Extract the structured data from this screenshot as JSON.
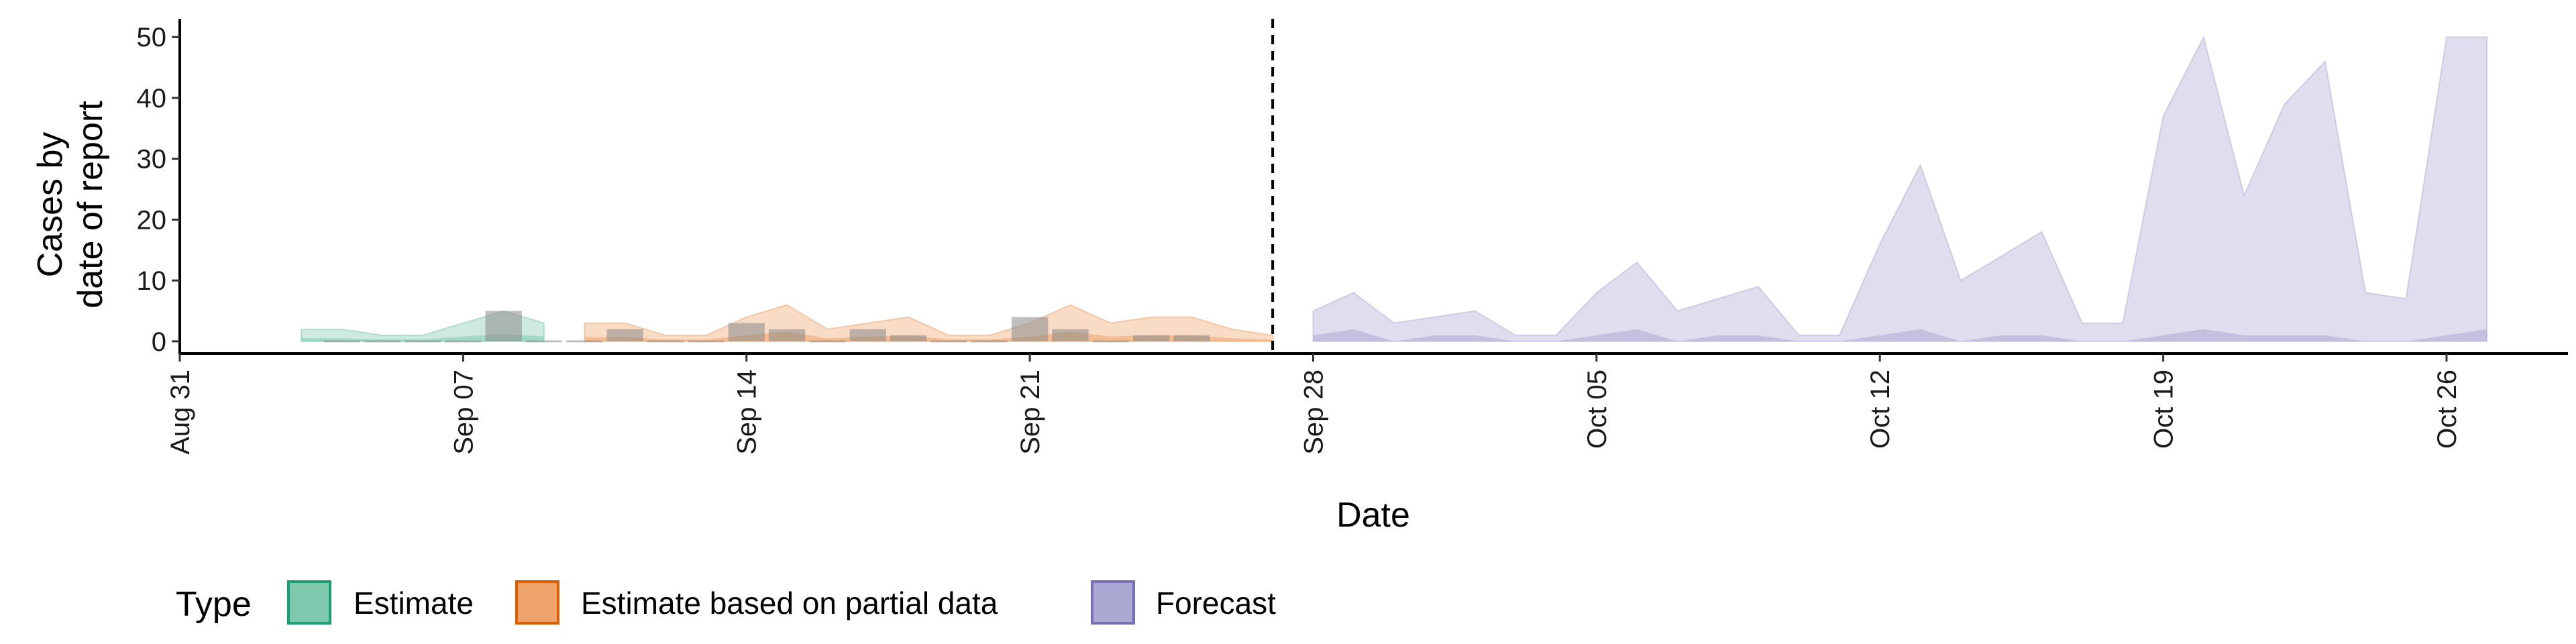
{
  "chart_data": {
    "type": "area",
    "xlabel": "Date",
    "ylabel_lines": [
      "Cases by",
      "date of report"
    ],
    "yticks": [
      0,
      10,
      20,
      30,
      40,
      50
    ],
    "ylim": [
      -2,
      53
    ],
    "xlim": [
      "2020-08-31",
      "2020-10-29"
    ],
    "xticks": [
      {
        "date": "2020-08-31",
        "label": "Aug 31"
      },
      {
        "date": "2020-09-07",
        "label": "Sep 07"
      },
      {
        "date": "2020-09-14",
        "label": "Sep 14"
      },
      {
        "date": "2020-09-21",
        "label": "Sep 21"
      },
      {
        "date": "2020-09-28",
        "label": "Sep 28"
      },
      {
        "date": "2020-10-05",
        "label": "Oct 05"
      },
      {
        "date": "2020-10-12",
        "label": "Oct 12"
      },
      {
        "date": "2020-10-19",
        "label": "Oct 19"
      },
      {
        "date": "2020-10-26",
        "label": "Oct 26"
      }
    ],
    "forecast_start": "2020-09-27",
    "legend": {
      "title": "Type",
      "position": "bottom",
      "items": [
        {
          "name": "Estimate",
          "fill": "#7ec8ad",
          "stroke": "#1b9e77"
        },
        {
          "name": "Estimate based on partial data",
          "fill": "#eea36a",
          "stroke": "#d95f02"
        },
        {
          "name": "Forecast",
          "fill": "#aba8d4",
          "stroke": "#7570b3"
        }
      ]
    },
    "reported_cases": [
      {
        "date": "2020-09-04",
        "value": 0
      },
      {
        "date": "2020-09-05",
        "value": 0
      },
      {
        "date": "2020-09-06",
        "value": 0
      },
      {
        "date": "2020-09-07",
        "value": 0
      },
      {
        "date": "2020-09-08",
        "value": 5
      },
      {
        "date": "2020-09-09",
        "value": 0
      },
      {
        "date": "2020-09-10",
        "value": 0
      },
      {
        "date": "2020-09-11",
        "value": 2
      },
      {
        "date": "2020-09-12",
        "value": 0
      },
      {
        "date": "2020-09-13",
        "value": 0
      },
      {
        "date": "2020-09-14",
        "value": 3
      },
      {
        "date": "2020-09-15",
        "value": 2
      },
      {
        "date": "2020-09-16",
        "value": 0
      },
      {
        "date": "2020-09-17",
        "value": 2
      },
      {
        "date": "2020-09-18",
        "value": 1
      },
      {
        "date": "2020-09-19",
        "value": 0
      },
      {
        "date": "2020-09-20",
        "value": 0
      },
      {
        "date": "2020-09-21",
        "value": 4
      },
      {
        "date": "2020-09-22",
        "value": 2
      },
      {
        "date": "2020-09-23",
        "value": 0
      },
      {
        "date": "2020-09-24",
        "value": 1
      },
      {
        "date": "2020-09-25",
        "value": 1
      }
    ],
    "series": [
      {
        "name": "Estimate",
        "dates": [
          "2020-09-03",
          "2020-09-04",
          "2020-09-05",
          "2020-09-06",
          "2020-09-07",
          "2020-09-08",
          "2020-09-09"
        ],
        "upper90": [
          2,
          2,
          1,
          1,
          3,
          5,
          3
        ],
        "lower90": [
          0,
          0,
          0,
          0,
          0,
          0,
          0
        ],
        "upper50": [
          0.5,
          0.5,
          0.3,
          0.3,
          0.8,
          1.2,
          0.8
        ],
        "lower50": [
          0,
          0,
          0,
          0,
          0,
          0,
          0
        ]
      },
      {
        "name": "Estimate based on partial data",
        "dates": [
          "2020-09-10",
          "2020-09-11",
          "2020-09-12",
          "2020-09-13",
          "2020-09-14",
          "2020-09-15",
          "2020-09-16",
          "2020-09-17",
          "2020-09-18",
          "2020-09-19",
          "2020-09-20",
          "2020-09-21",
          "2020-09-22",
          "2020-09-23",
          "2020-09-24",
          "2020-09-25",
          "2020-09-26",
          "2020-09-27"
        ],
        "upper90": [
          3,
          3,
          1,
          1,
          4,
          6,
          2,
          3,
          4,
          1,
          1,
          3,
          6,
          3,
          4,
          4,
          2,
          1
        ],
        "lower90": [
          0,
          0,
          0,
          0,
          0,
          0,
          0,
          0,
          0,
          0,
          0,
          0,
          0,
          0,
          0,
          0,
          0,
          0
        ],
        "upper50": [
          0.7,
          0.7,
          0.3,
          0.3,
          1,
          1.6,
          0.5,
          0.8,
          1,
          0.3,
          0.3,
          0.8,
          1.6,
          0.8,
          1,
          1,
          0.5,
          0.3
        ],
        "lower50": [
          0,
          0,
          0,
          0,
          0,
          0,
          0,
          0,
          0,
          0,
          0,
          0,
          0,
          0,
          0,
          0,
          0,
          0
        ]
      },
      {
        "name": "Forecast",
        "dates": [
          "2020-09-28",
          "2020-09-29",
          "2020-09-30",
          "2020-10-01",
          "2020-10-02",
          "2020-10-03",
          "2020-10-04",
          "2020-10-05",
          "2020-10-06",
          "2020-10-07",
          "2020-10-08",
          "2020-10-09",
          "2020-10-10",
          "2020-10-11",
          "2020-10-12",
          "2020-10-13",
          "2020-10-14",
          "2020-10-15",
          "2020-10-16",
          "2020-10-17",
          "2020-10-18",
          "2020-10-19",
          "2020-10-20",
          "2020-10-21",
          "2020-10-22",
          "2020-10-23",
          "2020-10-24",
          "2020-10-25",
          "2020-10-26",
          "2020-10-27"
        ],
        "upper90": [
          5,
          8,
          3,
          4,
          5,
          1,
          1,
          8,
          13,
          5,
          7,
          9,
          1,
          1,
          16,
          29,
          10,
          14,
          18,
          3,
          3,
          37,
          50,
          24,
          39,
          46,
          8,
          7,
          50,
          50
        ],
        "lower90": [
          0,
          0,
          0,
          0,
          0,
          0,
          0,
          0,
          0,
          0,
          0,
          0,
          0,
          0,
          0,
          0,
          0,
          0,
          0,
          0,
          0,
          0,
          0,
          0,
          0,
          0,
          0,
          0,
          0,
          0
        ],
        "upper50": [
          1,
          2,
          0,
          1,
          1,
          0,
          0,
          1,
          2,
          0,
          1,
          1,
          0,
          0,
          1,
          2,
          0,
          1,
          1,
          0,
          0,
          1,
          2,
          1,
          1,
          1,
          0,
          0,
          1,
          2
        ],
        "lower50": [
          0,
          0,
          0,
          0,
          0,
          0,
          0,
          0,
          0,
          0,
          0,
          0,
          0,
          0,
          0,
          0,
          0,
          0,
          0,
          0,
          0,
          0,
          0,
          0,
          0,
          0,
          0,
          0,
          0,
          0
        ]
      }
    ]
  }
}
